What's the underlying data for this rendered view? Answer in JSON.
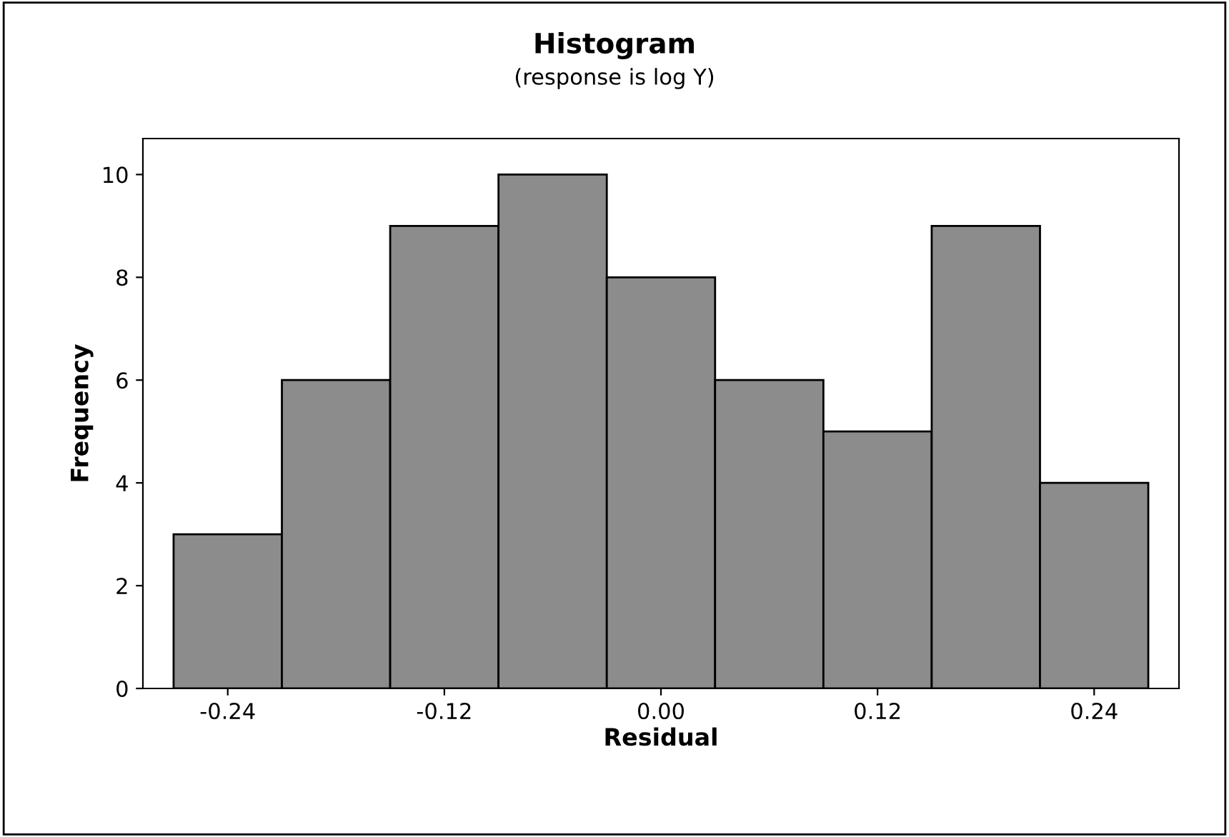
{
  "chart_data": {
    "type": "histogram",
    "title": "Histogram",
    "subtitle": "(response is log Y)",
    "xlabel": "Residual",
    "ylabel": "Frequency",
    "bins": [
      -0.27,
      -0.21,
      -0.15,
      -0.09,
      -0.03,
      0.03,
      0.09,
      0.15,
      0.21,
      0.27
    ],
    "values": [
      3,
      6,
      9,
      10,
      8,
      6,
      5,
      9,
      4
    ],
    "color": "#8c8c8c",
    "xlim": [
      -0.287,
      0.287
    ],
    "xticks": [
      {
        "value": -0.24,
        "label": "-0.24"
      },
      {
        "value": -0.12,
        "label": "-0.12"
      },
      {
        "value": 0,
        "label": "0.00"
      },
      {
        "value": 0.12,
        "label": "0.12"
      },
      {
        "value": 0.24,
        "label": "0.24"
      }
    ],
    "ylim": [
      0,
      10.7
    ],
    "yticks": [
      0,
      2,
      4,
      6,
      8,
      10
    ],
    "grid": false,
    "legend": false
  }
}
